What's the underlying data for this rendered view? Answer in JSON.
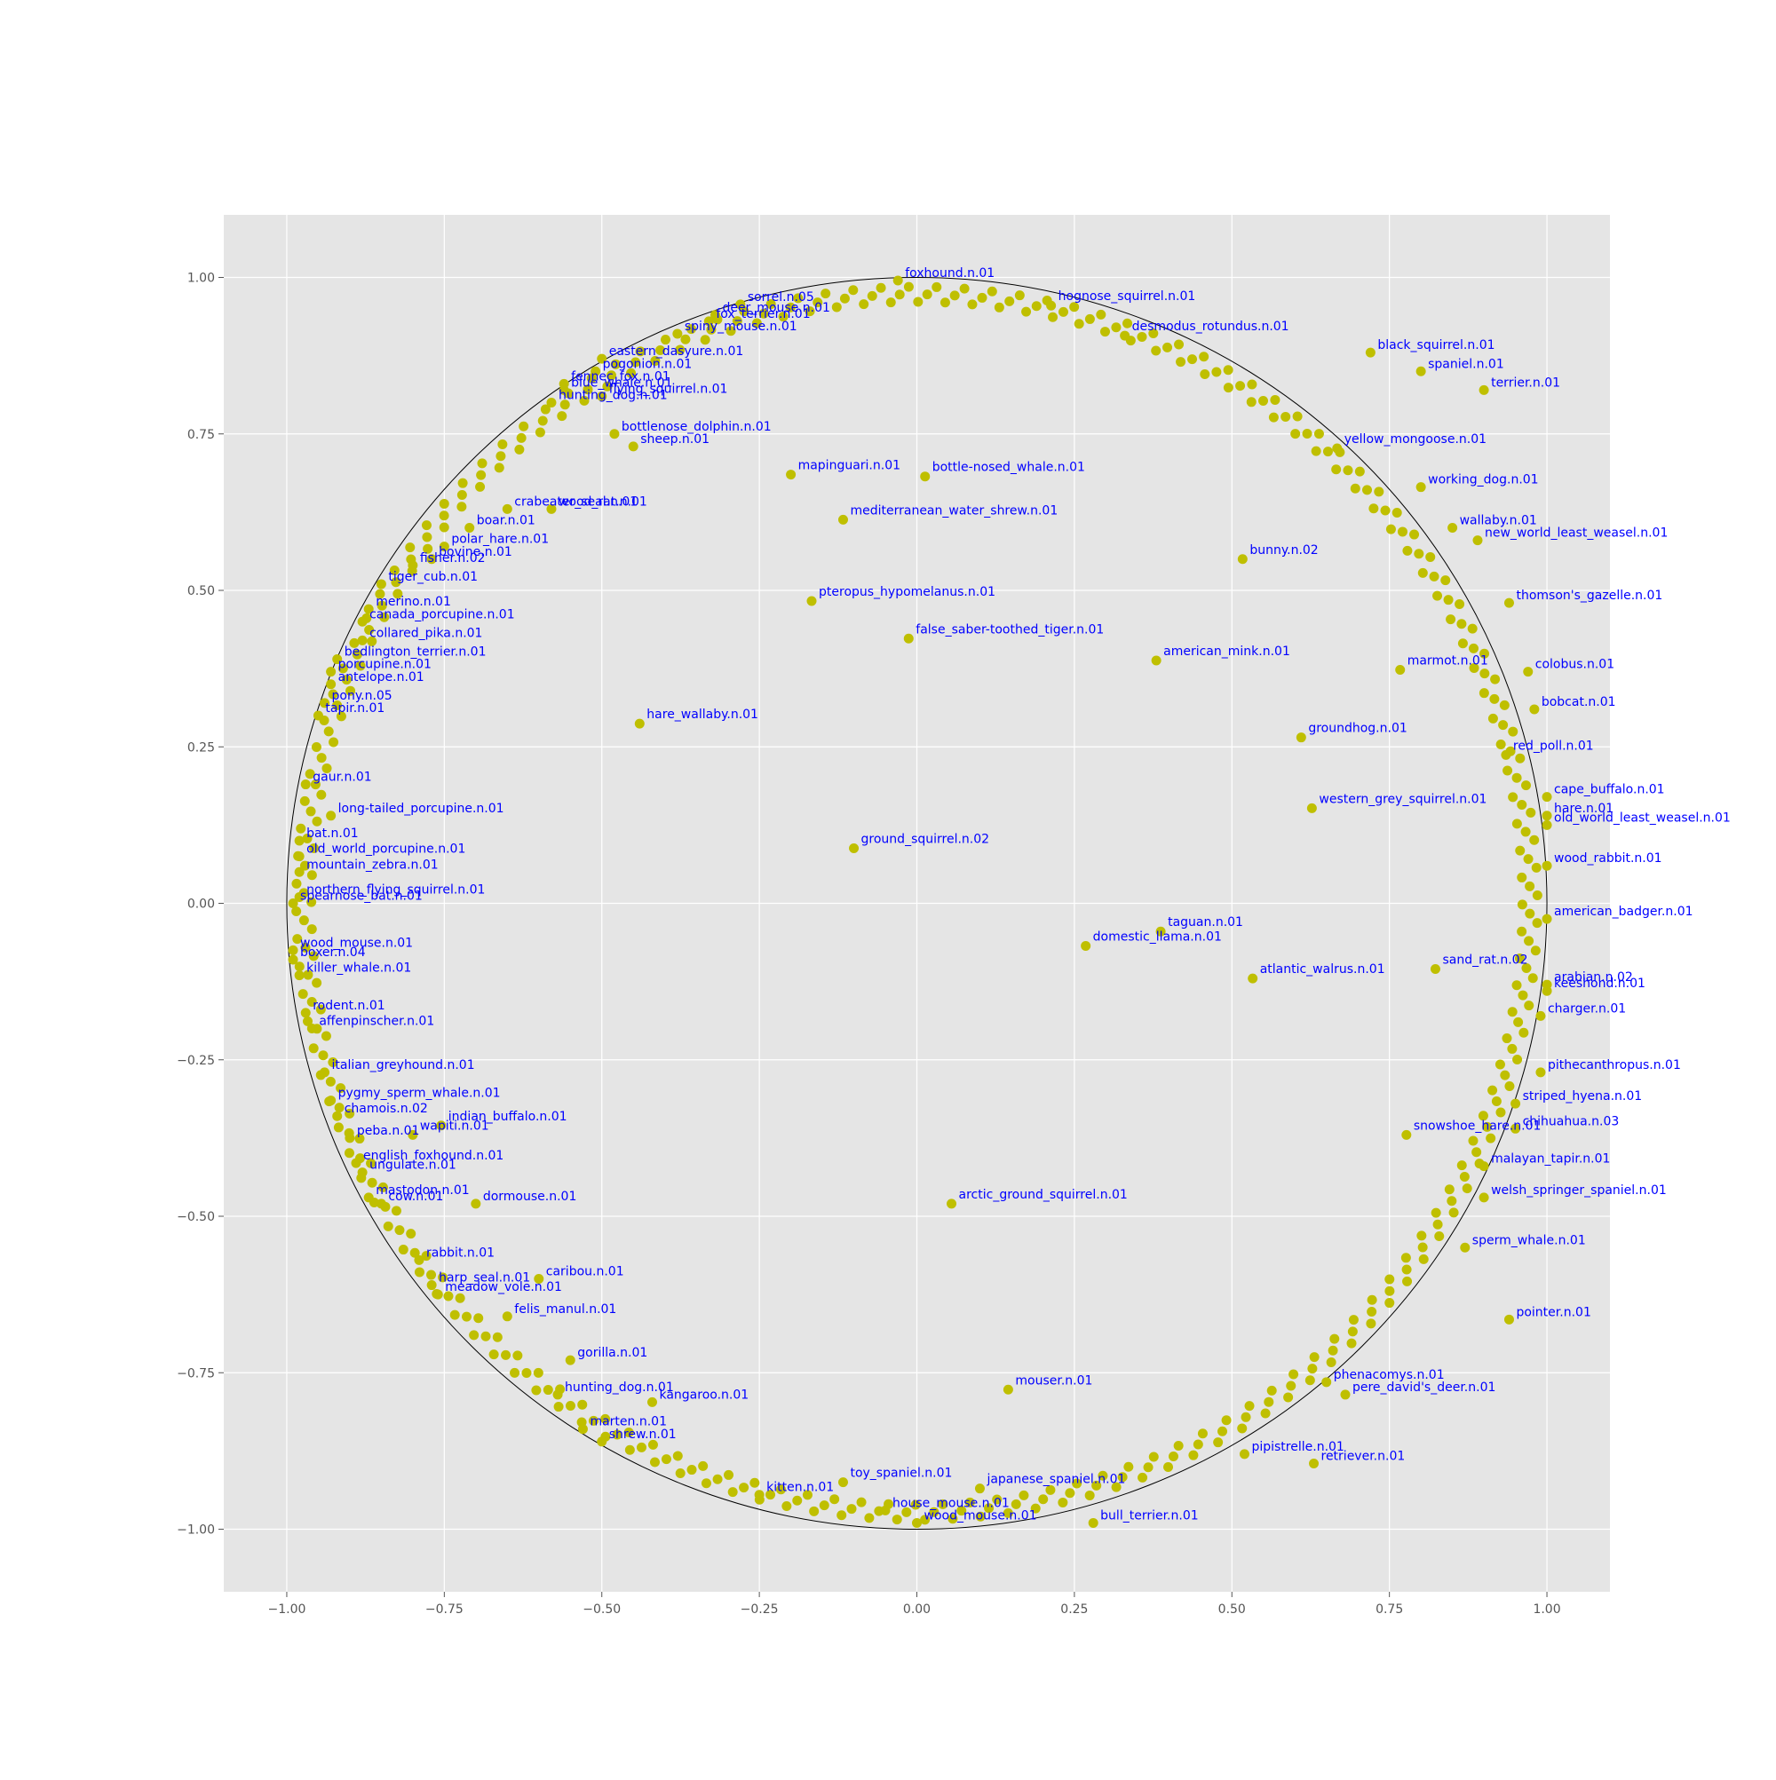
{
  "chart_data": {
    "type": "scatter",
    "title": "",
    "xlabel": "",
    "ylabel": "",
    "xlim": [
      -1.1,
      1.1
    ],
    "ylim": [
      -1.1,
      1.1
    ],
    "xticks": [
      -1.0,
      -0.75,
      -0.5,
      -0.25,
      0.0,
      0.25,
      0.5,
      0.75,
      1.0
    ],
    "xtick_labels": [
      "−1.00",
      "−0.75",
      "−0.50",
      "−0.25",
      "0.00",
      "0.25",
      "0.50",
      "0.75",
      "1.00"
    ],
    "yticks": [
      -1.0,
      -0.75,
      -0.5,
      -0.25,
      0.0,
      0.25,
      0.5,
      0.75,
      1.0
    ],
    "ytick_labels": [
      "−1.00",
      "−0.75",
      "−0.50",
      "−0.25",
      "0.00",
      "0.25",
      "0.50",
      "0.75",
      "1.00"
    ],
    "grid": true,
    "unit_circle": true,
    "colors": {
      "background": "#e5e5e5",
      "grid": "#ffffff",
      "marker": "#bfbf00",
      "label": "#0000ff",
      "circle": "#000000"
    },
    "interior_points": [
      {
        "label": "mapinguari.n.01",
        "x": -0.2,
        "y": 0.685
      },
      {
        "label": "bottle-nosed_whale.n.01",
        "x": 0.013,
        "y": 0.682
      },
      {
        "label": "mediterranean_water_shrew.n.01",
        "x": -0.117,
        "y": 0.613
      },
      {
        "label": "bunny.n.02",
        "x": 0.517,
        "y": 0.55
      },
      {
        "label": "pteropus_hypomelanus.n.01",
        "x": -0.167,
        "y": 0.483
      },
      {
        "label": "false_saber-toothed_tiger.n.01",
        "x": -0.013,
        "y": 0.423
      },
      {
        "label": "american_mink.n.01",
        "x": 0.38,
        "y": 0.388
      },
      {
        "label": "marmot.n.01",
        "x": 0.767,
        "y": 0.373
      },
      {
        "label": "hare_wallaby.n.01",
        "x": -0.44,
        "y": 0.287
      },
      {
        "label": "groundhog.n.01",
        "x": 0.61,
        "y": 0.265
      },
      {
        "label": "western_grey_squirrel.n.01",
        "x": 0.627,
        "y": 0.152
      },
      {
        "label": "ground_squirrel.n.02",
        "x": -0.1,
        "y": 0.088
      },
      {
        "label": "taguan.n.01",
        "x": 0.387,
        "y": -0.045
      },
      {
        "label": "domestic_llama.n.01",
        "x": 0.268,
        "y": -0.068
      },
      {
        "label": "atlantic_walrus.n.01",
        "x": 0.533,
        "y": -0.12
      },
      {
        "label": "sand_rat.n.02",
        "x": 0.823,
        "y": -0.105
      },
      {
        "label": "indian_buffalo.n.01",
        "x": -0.755,
        "y": -0.355
      },
      {
        "label": "wapiti.n.01",
        "x": -0.8,
        "y": -0.37
      },
      {
        "label": "snowshoe_hare.n.01",
        "x": 0.777,
        "y": -0.37
      },
      {
        "label": "arctic_ground_squirrel.n.01",
        "x": 0.055,
        "y": -0.48
      },
      {
        "label": "mouser.n.01",
        "x": 0.145,
        "y": -0.777
      },
      {
        "label": "japanese_spaniel.n.01",
        "x": 0.1,
        "y": -0.935
      },
      {
        "label": "toy_spaniel.n.01",
        "x": -0.117,
        "y": -0.925
      },
      {
        "label": "hognose_squirrel.n.01",
        "x": 0.213,
        "y": 0.955
      },
      {
        "label": "desmodus_rotundus.n.01",
        "x": 0.33,
        "y": 0.907
      },
      {
        "label": "yellow_mongoose.n.01",
        "x": 0.667,
        "y": 0.727
      },
      {
        "label": "red_poll.n.01",
        "x": 0.935,
        "y": 0.237
      }
    ],
    "rim_labels": [
      {
        "label": "foxhound.n.01",
        "x": -0.03,
        "y": 0.995
      },
      {
        "label": "sorrel.n.05",
        "x": -0.28,
        "y": 0.957
      },
      {
        "label": "deer_mouse.n.01",
        "x": -0.32,
        "y": 0.94
      },
      {
        "label": "fox_terrier.n.01",
        "x": -0.33,
        "y": 0.93
      },
      {
        "label": "spiny_mouse.n.01",
        "x": -0.38,
        "y": 0.91
      },
      {
        "label": "eastern_dasyure.n.01",
        "x": -0.5,
        "y": 0.87
      },
      {
        "label": "blue_whale.n.01",
        "x": -0.56,
        "y": 0.82
      },
      {
        "label": "fennec_fox.n.01",
        "x": -0.56,
        "y": 0.83
      },
      {
        "label": "flying_squirrel.n.01",
        "x": -0.5,
        "y": 0.81
      },
      {
        "label": "pogonion.n.01",
        "x": -0.51,
        "y": 0.85
      },
      {
        "label": "hunting_dog.n.01",
        "x": -0.58,
        "y": 0.8
      },
      {
        "label": "sheep.n.01",
        "x": -0.45,
        "y": 0.73
      },
      {
        "label": "bottlenose_dolphin.n.01",
        "x": -0.48,
        "y": 0.75
      },
      {
        "label": "wood_rat.n.01",
        "x": -0.58,
        "y": 0.63
      },
      {
        "label": "crabeater_seal.n.01",
        "x": -0.65,
        "y": 0.63
      },
      {
        "label": "boar.n.01",
        "x": -0.71,
        "y": 0.6
      },
      {
        "label": "polar_hare.n.01",
        "x": -0.75,
        "y": 0.57
      },
      {
        "label": "bovine.n.01",
        "x": -0.77,
        "y": 0.55
      },
      {
        "label": "fisher.n.02",
        "x": -0.8,
        "y": 0.54
      },
      {
        "label": "tiger_cub.n.01",
        "x": -0.85,
        "y": 0.51
      },
      {
        "label": "merino.n.01",
        "x": -0.87,
        "y": 0.47
      },
      {
        "label": "canada_porcupine.n.01",
        "x": -0.88,
        "y": 0.45
      },
      {
        "label": "collared_pika.n.01",
        "x": -0.88,
        "y": 0.42
      },
      {
        "label": "bedlington_terrier.n.01",
        "x": -0.92,
        "y": 0.39
      },
      {
        "label": "porcupine.n.01",
        "x": -0.93,
        "y": 0.37
      },
      {
        "label": "antelope.n.01",
        "x": -0.93,
        "y": 0.35
      },
      {
        "label": "pony.n.05",
        "x": -0.94,
        "y": 0.32
      },
      {
        "label": "tapir.n.01",
        "x": -0.95,
        "y": 0.3
      },
      {
        "label": "gaur.n.01",
        "x": -0.97,
        "y": 0.19
      },
      {
        "label": "long-tailed_porcupine.n.01",
        "x": -0.93,
        "y": 0.14
      },
      {
        "label": "bat.n.01",
        "x": -0.98,
        "y": 0.1
      },
      {
        "label": "mountain_zebra.n.01",
        "x": -0.98,
        "y": 0.05
      },
      {
        "label": "old_world_porcupine.n.01",
        "x": -0.98,
        "y": 0.075
      },
      {
        "label": "northern_flying_squirrel.n.01",
        "x": -0.98,
        "y": 0.01
      },
      {
        "label": "spearnose_bat.n.01",
        "x": -0.99,
        "y": 0.0
      },
      {
        "label": "wood_mouse.n.01",
        "x": -0.99,
        "y": -0.075
      },
      {
        "label": "boxer.n.04",
        "x": -0.99,
        "y": -0.09
      },
      {
        "label": "killer_whale.n.01",
        "x": -0.98,
        "y": -0.115
      },
      {
        "label": "rodent.n.01",
        "x": -0.97,
        "y": -0.175
      },
      {
        "label": "affenpinscher.n.01",
        "x": -0.96,
        "y": -0.2
      },
      {
        "label": "italian_greyhound.n.01",
        "x": -0.94,
        "y": -0.27
      },
      {
        "label": "pygmy_sperm_whale.n.01",
        "x": -0.93,
        "y": -0.315
      },
      {
        "label": "chamois.n.02",
        "x": -0.92,
        "y": -0.34
      },
      {
        "label": "peba.n.01",
        "x": -0.9,
        "y": -0.375
      },
      {
        "label": "english_foxhound.n.01",
        "x": -0.89,
        "y": -0.415
      },
      {
        "label": "ungulate.n.01",
        "x": -0.88,
        "y": -0.43
      },
      {
        "label": "mastodon.n.01",
        "x": -0.87,
        "y": -0.47
      },
      {
        "label": "cow.n.01",
        "x": -0.85,
        "y": -0.48
      },
      {
        "label": "dormouse.n.01",
        "x": -0.7,
        "y": -0.48
      },
      {
        "label": "rabbit.n.01",
        "x": -0.79,
        "y": -0.57
      },
      {
        "label": "caribou.n.01",
        "x": -0.6,
        "y": -0.6
      },
      {
        "label": "harp_seal.n.01",
        "x": -0.77,
        "y": -0.61
      },
      {
        "label": "meadow_vole.n.01",
        "x": -0.76,
        "y": -0.625
      },
      {
        "label": "felis_manul.n.01",
        "x": -0.65,
        "y": -0.66
      },
      {
        "label": "gorilla.n.01",
        "x": -0.55,
        "y": -0.73
      },
      {
        "label": "kangaroo.n.01",
        "x": -0.42,
        "y": -0.797
      },
      {
        "label": "hunting_dog.n.01",
        "x": -0.57,
        "y": -0.785
      },
      {
        "label": "marten.n.01",
        "x": -0.53,
        "y": -0.84
      },
      {
        "label": "shrew.n.01",
        "x": -0.5,
        "y": -0.86
      },
      {
        "label": "kitten.n.01",
        "x": -0.25,
        "y": -0.945
      },
      {
        "label": "house_mouse.n.01",
        "x": -0.05,
        "y": -0.97
      },
      {
        "label": "wood_mouse.n.01",
        "x": 0.0,
        "y": -0.99
      },
      {
        "label": "bull_terrier.n.01",
        "x": 0.28,
        "y": -0.99
      },
      {
        "label": "pipistrelle.n.01",
        "x": 0.52,
        "y": -0.88
      },
      {
        "label": "phenacomys.n.01",
        "x": 0.65,
        "y": -0.765
      },
      {
        "label": "pere_david's_deer.n.01",
        "x": 0.68,
        "y": -0.785
      },
      {
        "label": "retriever.n.01",
        "x": 0.63,
        "y": -0.895
      },
      {
        "label": "sperm_whale.n.01",
        "x": 0.87,
        "y": -0.55
      },
      {
        "label": "pointer.n.01",
        "x": 0.94,
        "y": -0.665
      },
      {
        "label": "welsh_springer_spaniel.n.01",
        "x": 0.9,
        "y": -0.47
      },
      {
        "label": "malayan_tapir.n.01",
        "x": 0.9,
        "y": -0.42
      },
      {
        "label": "striped_hyena.n.01",
        "x": 0.95,
        "y": -0.32
      },
      {
        "label": "chihuahua.n.03",
        "x": 0.95,
        "y": -0.36
      },
      {
        "label": "pithecanthropus.n.01",
        "x": 0.99,
        "y": -0.27
      },
      {
        "label": "charger.n.01",
        "x": 0.99,
        "y": -0.18
      },
      {
        "label": "arabian.n.02",
        "x": 1.0,
        "y": -0.13
      },
      {
        "label": "keeshond.n.01",
        "x": 1.0,
        "y": -0.14
      },
      {
        "label": "american_badger.n.01",
        "x": 1.0,
        "y": -0.025
      },
      {
        "label": "wood_rabbit.n.01",
        "x": 1.0,
        "y": 0.06
      },
      {
        "label": "old_world_least_weasel.n.01",
        "x": 1.0,
        "y": 0.125
      },
      {
        "label": "hare.n.01",
        "x": 1.0,
        "y": 0.14
      },
      {
        "label": "cape_buffalo.n.01",
        "x": 1.0,
        "y": 0.17
      },
      {
        "label": "bobcat.n.01",
        "x": 0.98,
        "y": 0.31
      },
      {
        "label": "colobus.n.01",
        "x": 0.97,
        "y": 0.37
      },
      {
        "label": "thomson's_gazelle.n.01",
        "x": 0.94,
        "y": 0.48
      },
      {
        "label": "new_world_least_weasel.n.01",
        "x": 0.89,
        "y": 0.58
      },
      {
        "label": "wallaby.n.01",
        "x": 0.85,
        "y": 0.6
      },
      {
        "label": "working_dog.n.01",
        "x": 0.8,
        "y": 0.665
      },
      {
        "label": "black_squirrel.n.01",
        "x": 0.72,
        "y": 0.88
      },
      {
        "label": "spaniel.n.01",
        "x": 0.8,
        "y": 0.85
      },
      {
        "label": "terrier.n.01",
        "x": 0.9,
        "y": 0.82
      }
    ]
  }
}
